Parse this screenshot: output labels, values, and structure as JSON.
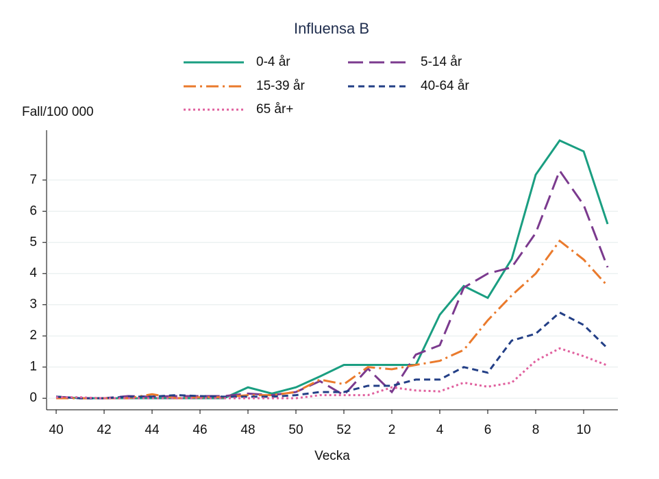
{
  "chart_data": {
    "type": "line",
    "title": "Influensa B",
    "y_label": "Fall/100 000",
    "x_label": "Vecka",
    "categories": [
      "40",
      null,
      "42",
      null,
      "44",
      null,
      "46",
      null,
      "48",
      null,
      "50",
      null,
      "52",
      null,
      "2",
      null,
      "4",
      null,
      "6",
      null,
      "8",
      null,
      "10",
      null
    ],
    "series": [
      {
        "name": "0-4 år",
        "color": "#1a9e81",
        "line_style": "solid",
        "values": [
          0.05,
          0,
          0,
          0,
          0,
          0,
          0,
          0,
          0.35,
          0.15,
          0.35,
          0.7,
          1.07,
          1.07,
          1.07,
          1.07,
          2.68,
          3.6,
          3.22,
          4.47,
          7.17,
          8.27,
          7.92,
          5.59
        ]
      },
      {
        "name": "5-14 år",
        "color": "#7b3a8e",
        "line_style": "dash",
        "values": [
          0.05,
          0,
          0,
          0.07,
          0.05,
          0.07,
          0.07,
          0.07,
          0.15,
          0.1,
          0.2,
          0.55,
          0.1,
          0.95,
          0.2,
          1.4,
          1.7,
          3.55,
          4.0,
          4.2,
          5.3,
          7.3,
          6.2,
          4.2
        ]
      },
      {
        "name": "15-39 år",
        "color": "#ea7a2c",
        "line_style": "dashdot",
        "values": [
          0,
          0,
          0,
          0,
          0.13,
          0,
          0.03,
          0.03,
          0.1,
          0.1,
          0.2,
          0.6,
          0.45,
          1.0,
          0.93,
          1.07,
          1.2,
          1.55,
          2.5,
          3.3,
          4.0,
          5.05,
          4.45,
          3.6
        ]
      },
      {
        "name": "40-64 år",
        "color": "#233f86",
        "line_style": "shortdash",
        "values": [
          0.05,
          0,
          0,
          0.05,
          0.05,
          0.1,
          0.07,
          0.05,
          0.05,
          0.05,
          0.1,
          0.2,
          0.2,
          0.4,
          0.4,
          0.6,
          0.6,
          1.0,
          0.82,
          1.85,
          2.07,
          2.75,
          2.35,
          1.6
        ]
      },
      {
        "name": "65 år+",
        "color": "#e0609e",
        "line_style": "dot",
        "values": [
          0.03,
          0.03,
          0,
          0,
          0,
          0,
          0,
          0,
          0,
          0,
          0,
          0.1,
          0.1,
          0.1,
          0.35,
          0.25,
          0.22,
          0.5,
          0.37,
          0.5,
          1.2,
          1.6,
          1.35,
          1.05
        ]
      }
    ],
    "ylim": [
      -0.37,
      8.6
    ],
    "yticks": [
      0,
      1,
      2,
      3,
      4,
      5,
      6,
      7
    ],
    "grid": true
  }
}
